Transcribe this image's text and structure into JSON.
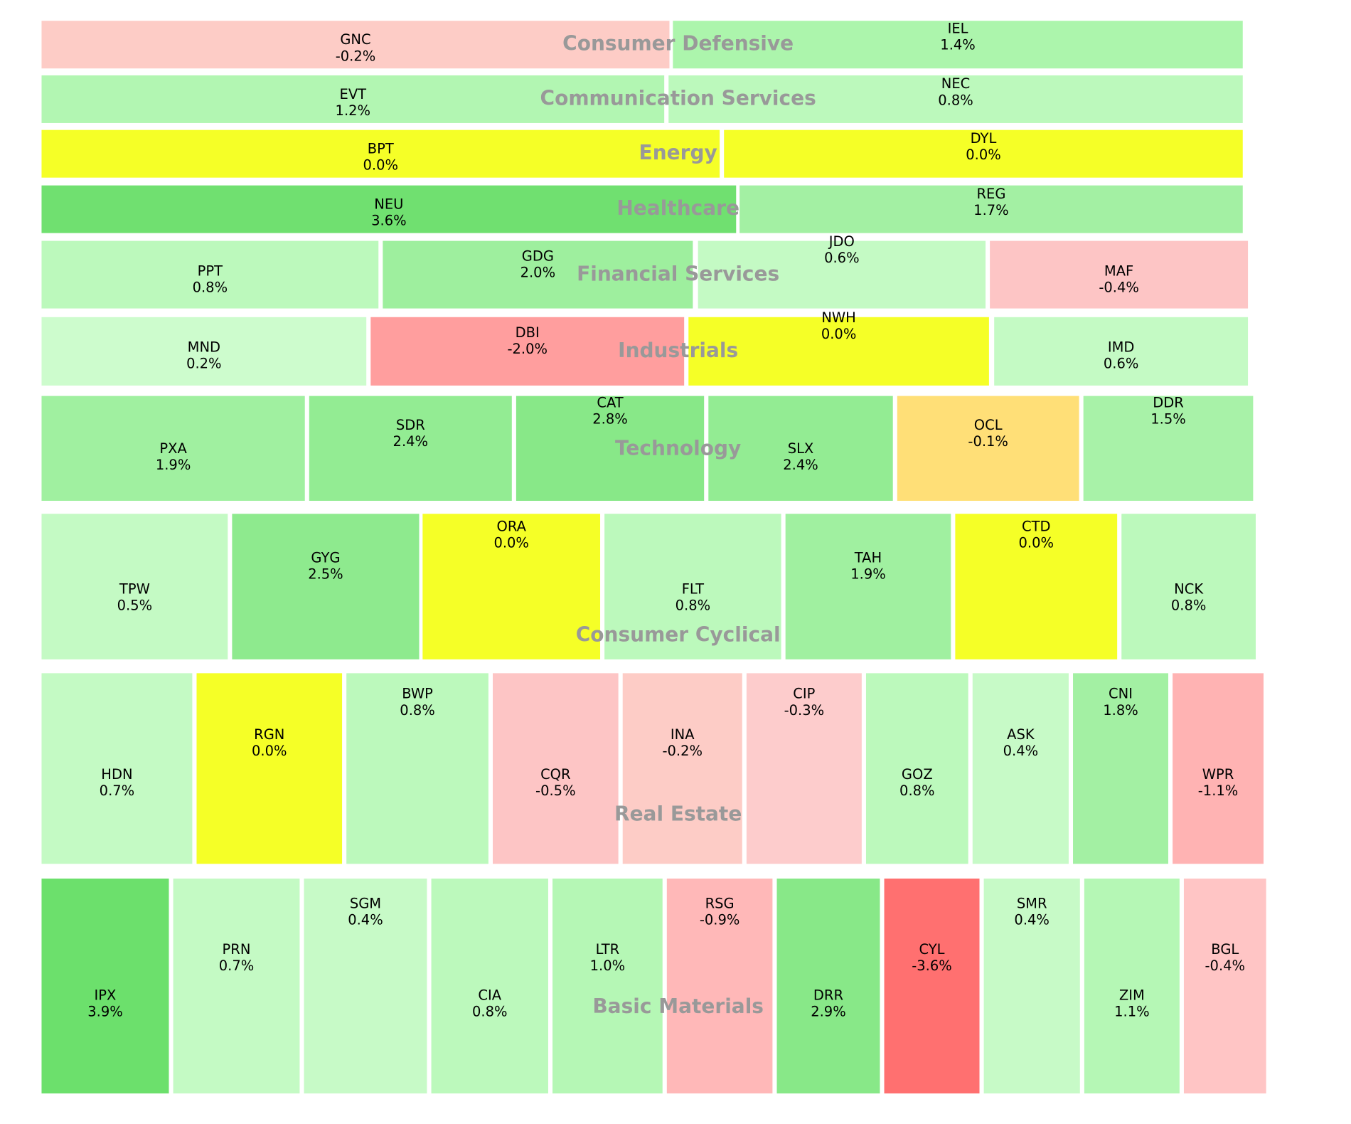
{
  "chart_data": {
    "type": "treemap",
    "title": "",
    "sectors": [
      {
        "name": "Consumer Defensive",
        "stocks": [
          {
            "ticker": "GNC",
            "change": "-0.2%",
            "value": -0.2,
            "color": "#fdccc6"
          },
          {
            "ticker": "IEL",
            "change": "1.4%",
            "value": 1.4,
            "color": "#acf5ac"
          }
        ]
      },
      {
        "name": "Communication Services",
        "stocks": [
          {
            "ticker": "EVT",
            "change": "1.2%",
            "value": 1.2,
            "color": "#b2f6b2"
          },
          {
            "ticker": "NEC",
            "change": "0.8%",
            "value": 0.8,
            "color": "#bcf9bc"
          }
        ]
      },
      {
        "name": "Energy",
        "stocks": [
          {
            "ticker": "BPT",
            "change": "0.0%",
            "value": 0.0,
            "color": "#f5ff27"
          },
          {
            "ticker": "DYL",
            "change": "0.0%",
            "value": 0.0,
            "color": "#f5ff27"
          }
        ]
      },
      {
        "name": "Healthcare",
        "stocks": [
          {
            "ticker": "NEU",
            "change": "3.6%",
            "value": 3.6,
            "color": "#70e070"
          },
          {
            "ticker": "REG",
            "change": "1.7%",
            "value": 1.7,
            "color": "#a3f0a3"
          }
        ]
      },
      {
        "name": "Financial Services",
        "stocks": [
          {
            "ticker": "PPT",
            "change": "0.8%",
            "value": 0.8,
            "color": "#bcf9bc"
          },
          {
            "ticker": "GDG",
            "change": "2.0%",
            "value": 2.0,
            "color": "#9eef9e"
          },
          {
            "ticker": "JDO",
            "change": "0.6%",
            "value": 0.6,
            "color": "#c4fac4"
          },
          {
            "ticker": "MAF",
            "change": "-0.4%",
            "value": -0.4,
            "color": "#fdc5c5"
          }
        ]
      },
      {
        "name": "Industrials",
        "stocks": [
          {
            "ticker": "MND",
            "change": "0.2%",
            "value": 0.2,
            "color": "#cdfccd"
          },
          {
            "ticker": "DBI",
            "change": "-2.0%",
            "value": -2.0,
            "color": "#ff9e9e"
          },
          {
            "ticker": "NWH",
            "change": "0.0%",
            "value": 0.0,
            "color": "#f5ff27"
          },
          {
            "ticker": "IMD",
            "change": "0.6%",
            "value": 0.6,
            "color": "#c4fac4"
          }
        ]
      },
      {
        "name": "Technology",
        "stocks": [
          {
            "ticker": "PXA",
            "change": "1.9%",
            "value": 1.9,
            "color": "#a0f0a0"
          },
          {
            "ticker": "SDR",
            "change": "2.4%",
            "value": 2.4,
            "color": "#93ec93"
          },
          {
            "ticker": "CAT",
            "change": "2.8%",
            "value": 2.8,
            "color": "#88e888"
          },
          {
            "ticker": "SLX",
            "change": "2.4%",
            "value": 2.4,
            "color": "#93ec93"
          },
          {
            "ticker": "OCL",
            "change": "-0.1%",
            "value": -0.1,
            "color": "#ffdf77"
          },
          {
            "ticker": "DDR",
            "change": "1.5%",
            "value": 1.5,
            "color": "#a8f2a8"
          }
        ]
      },
      {
        "name": "Consumer Cyclical",
        "stocks": [
          {
            "ticker": "TPW",
            "change": "0.5%",
            "value": 0.5,
            "color": "#c4fac4"
          },
          {
            "ticker": "GYG",
            "change": "2.5%",
            "value": 2.5,
            "color": "#8eea8e"
          },
          {
            "ticker": "ORA",
            "change": "0.0%",
            "value": 0.0,
            "color": "#f5ff27"
          },
          {
            "ticker": "FLT",
            "change": "0.8%",
            "value": 0.8,
            "color": "#bcf9bc"
          },
          {
            "ticker": "TAH",
            "change": "1.9%",
            "value": 1.9,
            "color": "#a0f0a0"
          },
          {
            "ticker": "CTD",
            "change": "0.0%",
            "value": 0.0,
            "color": "#f5ff27"
          },
          {
            "ticker": "NCK",
            "change": "0.8%",
            "value": 0.8,
            "color": "#bcf9bc"
          }
        ]
      },
      {
        "name": "Real Estate",
        "stocks": [
          {
            "ticker": "HDN",
            "change": "0.7%",
            "value": 0.7,
            "color": "#c4fac4"
          },
          {
            "ticker": "RGN",
            "change": "0.0%",
            "value": 0.0,
            "color": "#f5ff27"
          },
          {
            "ticker": "BWP",
            "change": "0.8%",
            "value": 0.8,
            "color": "#bcf9bc"
          },
          {
            "ticker": "CQR",
            "change": "-0.5%",
            "value": -0.5,
            "color": "#fdc5c5"
          },
          {
            "ticker": "INA",
            "change": "-0.2%",
            "value": -0.2,
            "color": "#fdccc6"
          },
          {
            "ticker": "CIP",
            "change": "-0.3%",
            "value": -0.3,
            "color": "#fdcccc"
          },
          {
            "ticker": "GOZ",
            "change": "0.8%",
            "value": 0.8,
            "color": "#bcf9bc"
          },
          {
            "ticker": "ASK",
            "change": "0.4%",
            "value": 0.4,
            "color": "#c7fac7"
          },
          {
            "ticker": "CNI",
            "change": "1.8%",
            "value": 1.8,
            "color": "#a3f0a3"
          },
          {
            "ticker": "WPR",
            "change": "-1.1%",
            "value": -1.1,
            "color": "#ffb3b3"
          }
        ]
      },
      {
        "name": "Basic Materials",
        "stocks": [
          {
            "ticker": "IPX",
            "change": "3.9%",
            "value": 3.9,
            "color": "#6ce06c"
          },
          {
            "ticker": "PRN",
            "change": "0.7%",
            "value": 0.7,
            "color": "#c4fac4"
          },
          {
            "ticker": "SGM",
            "change": "0.4%",
            "value": 0.4,
            "color": "#c7fac7"
          },
          {
            "ticker": "CIA",
            "change": "0.8%",
            "value": 0.8,
            "color": "#bcf9bc"
          },
          {
            "ticker": "LTR",
            "change": "1.0%",
            "value": 1.0,
            "color": "#b5f7b5"
          },
          {
            "ticker": "RSG",
            "change": "-0.9%",
            "value": -0.9,
            "color": "#ffb8b8"
          },
          {
            "ticker": "DRR",
            "change": "2.9%",
            "value": 2.9,
            "color": "#88e888"
          },
          {
            "ticker": "CYL",
            "change": "-3.6%",
            "value": -3.6,
            "color": "#ff7070"
          },
          {
            "ticker": "SMR",
            "change": "0.4%",
            "value": 0.4,
            "color": "#c7fac7"
          },
          {
            "ticker": "ZIM",
            "change": "1.1%",
            "value": 1.1,
            "color": "#b5f7b5"
          },
          {
            "ticker": "BGL",
            "change": "-0.4%",
            "value": -0.4,
            "color": "#ffc5c5"
          }
        ]
      }
    ]
  }
}
